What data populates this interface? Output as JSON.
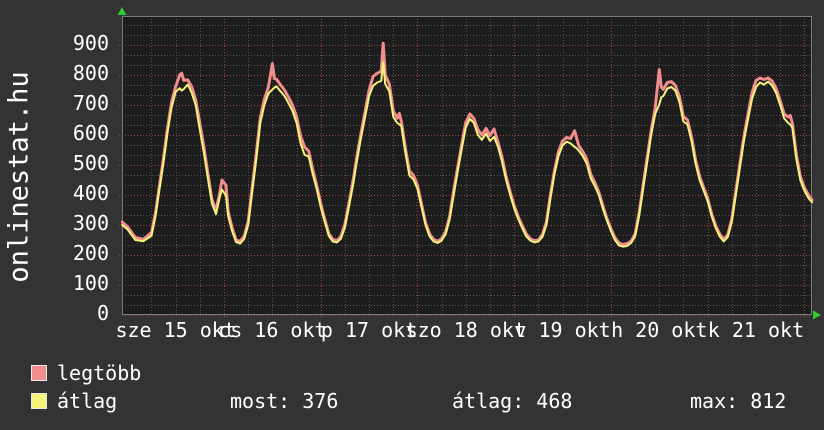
{
  "site": {
    "watermark": "onlinestat.hu"
  },
  "legend": [
    {
      "label": "legtöbb",
      "color": "#f18d8d"
    },
    {
      "label": "átlag",
      "color": "#f4f47a"
    }
  ],
  "stats": [
    {
      "label": "most",
      "value": "376",
      "text": "most: 376"
    },
    {
      "label": "átlag",
      "value": "468",
      "text": "átlag: 468"
    },
    {
      "label": "max",
      "value": "812",
      "text": "max: 812"
    }
  ],
  "chart_data": {
    "type": "line",
    "title": "",
    "xlabel": "",
    "ylabel": "",
    "ylim": [
      0,
      996
    ],
    "xlim_hours": [
      -1.3,
      169.9
    ],
    "y_ticks": [
      0,
      100,
      200,
      300,
      400,
      500,
      600,
      700,
      800,
      900
    ],
    "x_ticks": [
      {
        "label": "sze 15 okt",
        "hour": 12
      },
      {
        "label": "cs 16 okt",
        "hour": 36
      },
      {
        "label": "p 17 okt",
        "hour": 60
      },
      {
        "label": "szo 18 okt",
        "hour": 84
      },
      {
        "label": "v 19 okt",
        "hour": 108
      },
      {
        "label": "h 20 okt",
        "hour": 132
      },
      {
        "label": "k 21 okt",
        "hour": 156
      }
    ],
    "grid": {
      "minor_color": "#545454",
      "major_color": "#9c4343",
      "background": "#1d1d1d",
      "border": "#7a7a7a",
      "arrow_color": "#2ecc2e"
    },
    "legend_position": "bottom-left",
    "summary": {
      "most": 376,
      "atlag": 468,
      "max": 812
    },
    "series_names": [
      "legtöbb",
      "átlag"
    ],
    "series_colors": [
      "#f18d8d",
      "#f4f47a"
    ],
    "points": [
      [
        -1.3,
        310,
        300
      ],
      [
        0,
        295,
        286
      ],
      [
        2,
        258,
        250
      ],
      [
        4,
        252,
        246
      ],
      [
        6,
        275,
        264
      ],
      [
        7,
        340,
        330
      ],
      [
        8,
        432,
        420
      ],
      [
        9,
        525,
        510
      ],
      [
        10,
        625,
        610
      ],
      [
        11,
        710,
        692
      ],
      [
        12,
        762,
        744
      ],
      [
        13,
        800,
        756
      ],
      [
        13.5,
        806,
        748
      ],
      [
        14,
        782,
        753
      ],
      [
        15,
        784,
        768
      ],
      [
        16,
        760,
        740
      ],
      [
        17,
        716,
        698
      ],
      [
        18,
        640,
        618
      ],
      [
        19,
        560,
        540
      ],
      [
        20,
        470,
        455
      ],
      [
        21,
        386,
        372
      ],
      [
        22,
        348,
        336
      ],
      [
        23,
        412,
        396
      ],
      [
        23.5,
        450,
        418
      ],
      [
        24.5,
        432,
        398
      ],
      [
        25,
        346,
        330
      ],
      [
        26,
        290,
        280
      ],
      [
        27,
        250,
        243
      ],
      [
        28,
        246,
        238
      ],
      [
        29,
        262,
        254
      ],
      [
        30,
        312,
        300
      ],
      [
        31,
        426,
        410
      ],
      [
        32,
        538,
        520
      ],
      [
        33,
        658,
        640
      ],
      [
        34,
        718,
        700
      ],
      [
        35,
        760,
        738
      ],
      [
        36,
        838,
        752
      ],
      [
        36.5,
        788,
        758
      ],
      [
        37,
        786,
        762
      ],
      [
        38,
        768,
        746
      ],
      [
        39,
        750,
        730
      ],
      [
        40,
        726,
        706
      ],
      [
        41,
        700,
        680
      ],
      [
        42,
        660,
        640
      ],
      [
        43,
        596,
        572
      ],
      [
        44,
        560,
        534
      ],
      [
        45,
        546,
        528
      ],
      [
        46,
        486,
        470
      ],
      [
        47,
        432,
        420
      ],
      [
        48,
        372,
        360
      ],
      [
        49,
        318,
        310
      ],
      [
        50,
        272,
        264
      ],
      [
        51,
        252,
        245
      ],
      [
        52,
        248,
        242
      ],
      [
        53,
        262,
        254
      ],
      [
        54,
        302,
        292
      ],
      [
        55,
        372,
        360
      ],
      [
        56,
        446,
        432
      ],
      [
        57,
        530,
        515
      ],
      [
        58,
        606,
        590
      ],
      [
        59,
        678,
        660
      ],
      [
        60,
        750,
        730
      ],
      [
        61,
        795,
        764
      ],
      [
        62,
        806,
        775
      ],
      [
        63,
        812,
        780
      ],
      [
        63.5,
        906,
        842
      ],
      [
        64,
        800,
        770
      ],
      [
        65,
        770,
        746
      ],
      [
        66,
        680,
        660
      ],
      [
        67,
        656,
        640
      ],
      [
        67.5,
        672,
        636
      ],
      [
        68,
        646,
        630
      ],
      [
        69,
        556,
        540
      ],
      [
        70,
        480,
        465
      ],
      [
        71,
        466,
        452
      ],
      [
        72,
        432,
        420
      ],
      [
        73,
        370,
        360
      ],
      [
        74,
        308,
        300
      ],
      [
        75,
        270,
        262
      ],
      [
        76,
        252,
        245
      ],
      [
        77,
        246,
        240
      ],
      [
        78,
        254,
        248
      ],
      [
        79,
        278,
        270
      ],
      [
        80,
        330,
        320
      ],
      [
        81,
        415,
        400
      ],
      [
        82,
        495,
        480
      ],
      [
        83,
        570,
        555
      ],
      [
        84,
        642,
        625
      ],
      [
        85,
        670,
        654
      ],
      [
        86,
        655,
        640
      ],
      [
        87,
        618,
        600
      ],
      [
        88,
        600,
        584
      ],
      [
        89,
        622,
        605
      ],
      [
        90,
        598,
        580
      ],
      [
        91,
        620,
        594
      ],
      [
        92,
        575,
        560
      ],
      [
        93,
        525,
        510
      ],
      [
        94,
        462,
        450
      ],
      [
        95,
        410,
        400
      ],
      [
        96,
        365,
        355
      ],
      [
        97,
        328,
        320
      ],
      [
        98,
        298,
        290
      ],
      [
        99,
        270,
        262
      ],
      [
        100,
        254,
        248
      ],
      [
        101,
        248,
        242
      ],
      [
        102,
        250,
        245
      ],
      [
        103,
        268,
        260
      ],
      [
        104,
        310,
        300
      ],
      [
        105,
        402,
        390
      ],
      [
        106,
        482,
        470
      ],
      [
        107,
        545,
        530
      ],
      [
        108,
        580,
        565
      ],
      [
        109,
        592,
        578
      ],
      [
        110,
        588,
        572
      ],
      [
        111,
        614,
        560
      ],
      [
        111.5,
        590,
        556
      ],
      [
        112,
        565,
        548
      ],
      [
        113,
        545,
        530
      ],
      [
        114,
        520,
        505
      ],
      [
        115,
        468,
        455
      ],
      [
        116,
        442,
        430
      ],
      [
        117,
        410,
        400
      ],
      [
        118,
        365,
        355
      ],
      [
        119,
        322,
        315
      ],
      [
        120,
        288,
        280
      ],
      [
        121,
        258,
        250
      ],
      [
        122,
        240,
        232
      ],
      [
        123,
        235,
        228
      ],
      [
        124,
        238,
        230
      ],
      [
        125,
        246,
        240
      ],
      [
        126,
        270,
        262
      ],
      [
        127,
        340,
        330
      ],
      [
        128,
        432,
        420
      ],
      [
        129,
        525,
        510
      ],
      [
        130,
        615,
        600
      ],
      [
        131,
        690,
        670
      ],
      [
        132,
        818,
        702
      ],
      [
        132.5,
        760,
        726
      ],
      [
        133,
        752,
        730
      ],
      [
        134,
        775,
        755
      ],
      [
        135,
        778,
        760
      ],
      [
        136,
        765,
        748
      ],
      [
        137,
        728,
        710
      ],
      [
        138,
        662,
        645
      ],
      [
        139,
        650,
        635
      ],
      [
        140,
        595,
        580
      ],
      [
        141,
        518,
        505
      ],
      [
        142,
        462,
        450
      ],
      [
        143,
        425,
        415
      ],
      [
        144,
        390,
        380
      ],
      [
        145,
        338,
        330
      ],
      [
        146,
        298,
        290
      ],
      [
        147,
        270,
        262
      ],
      [
        148,
        252,
        245
      ],
      [
        149,
        268,
        260
      ],
      [
        150,
        320,
        310
      ],
      [
        151,
        412,
        400
      ],
      [
        152,
        505,
        490
      ],
      [
        153,
        595,
        580
      ],
      [
        154,
        668,
        650
      ],
      [
        155,
        740,
        720
      ],
      [
        156,
        782,
        760
      ],
      [
        157,
        790,
        775
      ],
      [
        158,
        785,
        768
      ],
      [
        159,
        790,
        778
      ],
      [
        160,
        780,
        765
      ],
      [
        161,
        755,
        740
      ],
      [
        162,
        715,
        700
      ],
      [
        163,
        670,
        655
      ],
      [
        164,
        660,
        640
      ],
      [
        164.5,
        665,
        635
      ],
      [
        165,
        640,
        625
      ],
      [
        166,
        535,
        520
      ],
      [
        167,
        462,
        450
      ],
      [
        168,
        425,
        415
      ],
      [
        169,
        400,
        390
      ],
      [
        169.9,
        384,
        376
      ]
    ]
  }
}
